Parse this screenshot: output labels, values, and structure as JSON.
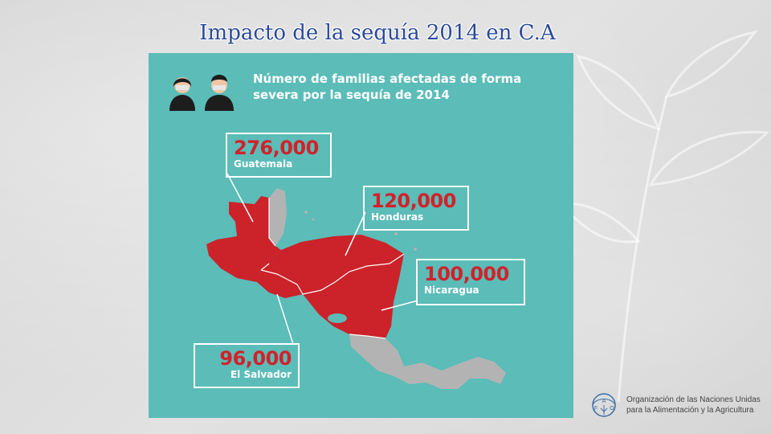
{
  "slide": {
    "title": "Impacto de la sequía 2014 en C.A"
  },
  "infographic": {
    "heading_line1": "Número de familias afectadas de forma",
    "heading_line2": "severa por la sequía de 2014",
    "icons": [
      "woman-icon",
      "man-icon"
    ],
    "colors": {
      "background": "#5bbcb8",
      "affected": "#cc2229",
      "unaffected": "#b3b3b3",
      "callout_border": "#ffffff"
    },
    "callouts": [
      {
        "country": "Guatemala",
        "value": "276,000"
      },
      {
        "country": "Honduras",
        "value": "120,000"
      },
      {
        "country": "Nicaragua",
        "value": "100,000"
      },
      {
        "country": "El Salvador",
        "value": "96,000"
      }
    ]
  },
  "footer": {
    "logo": "fao-logo",
    "org_line1": "Organización de las Naciones Unidas",
    "org_line2": "para la Alimentación y la Agricultura"
  }
}
